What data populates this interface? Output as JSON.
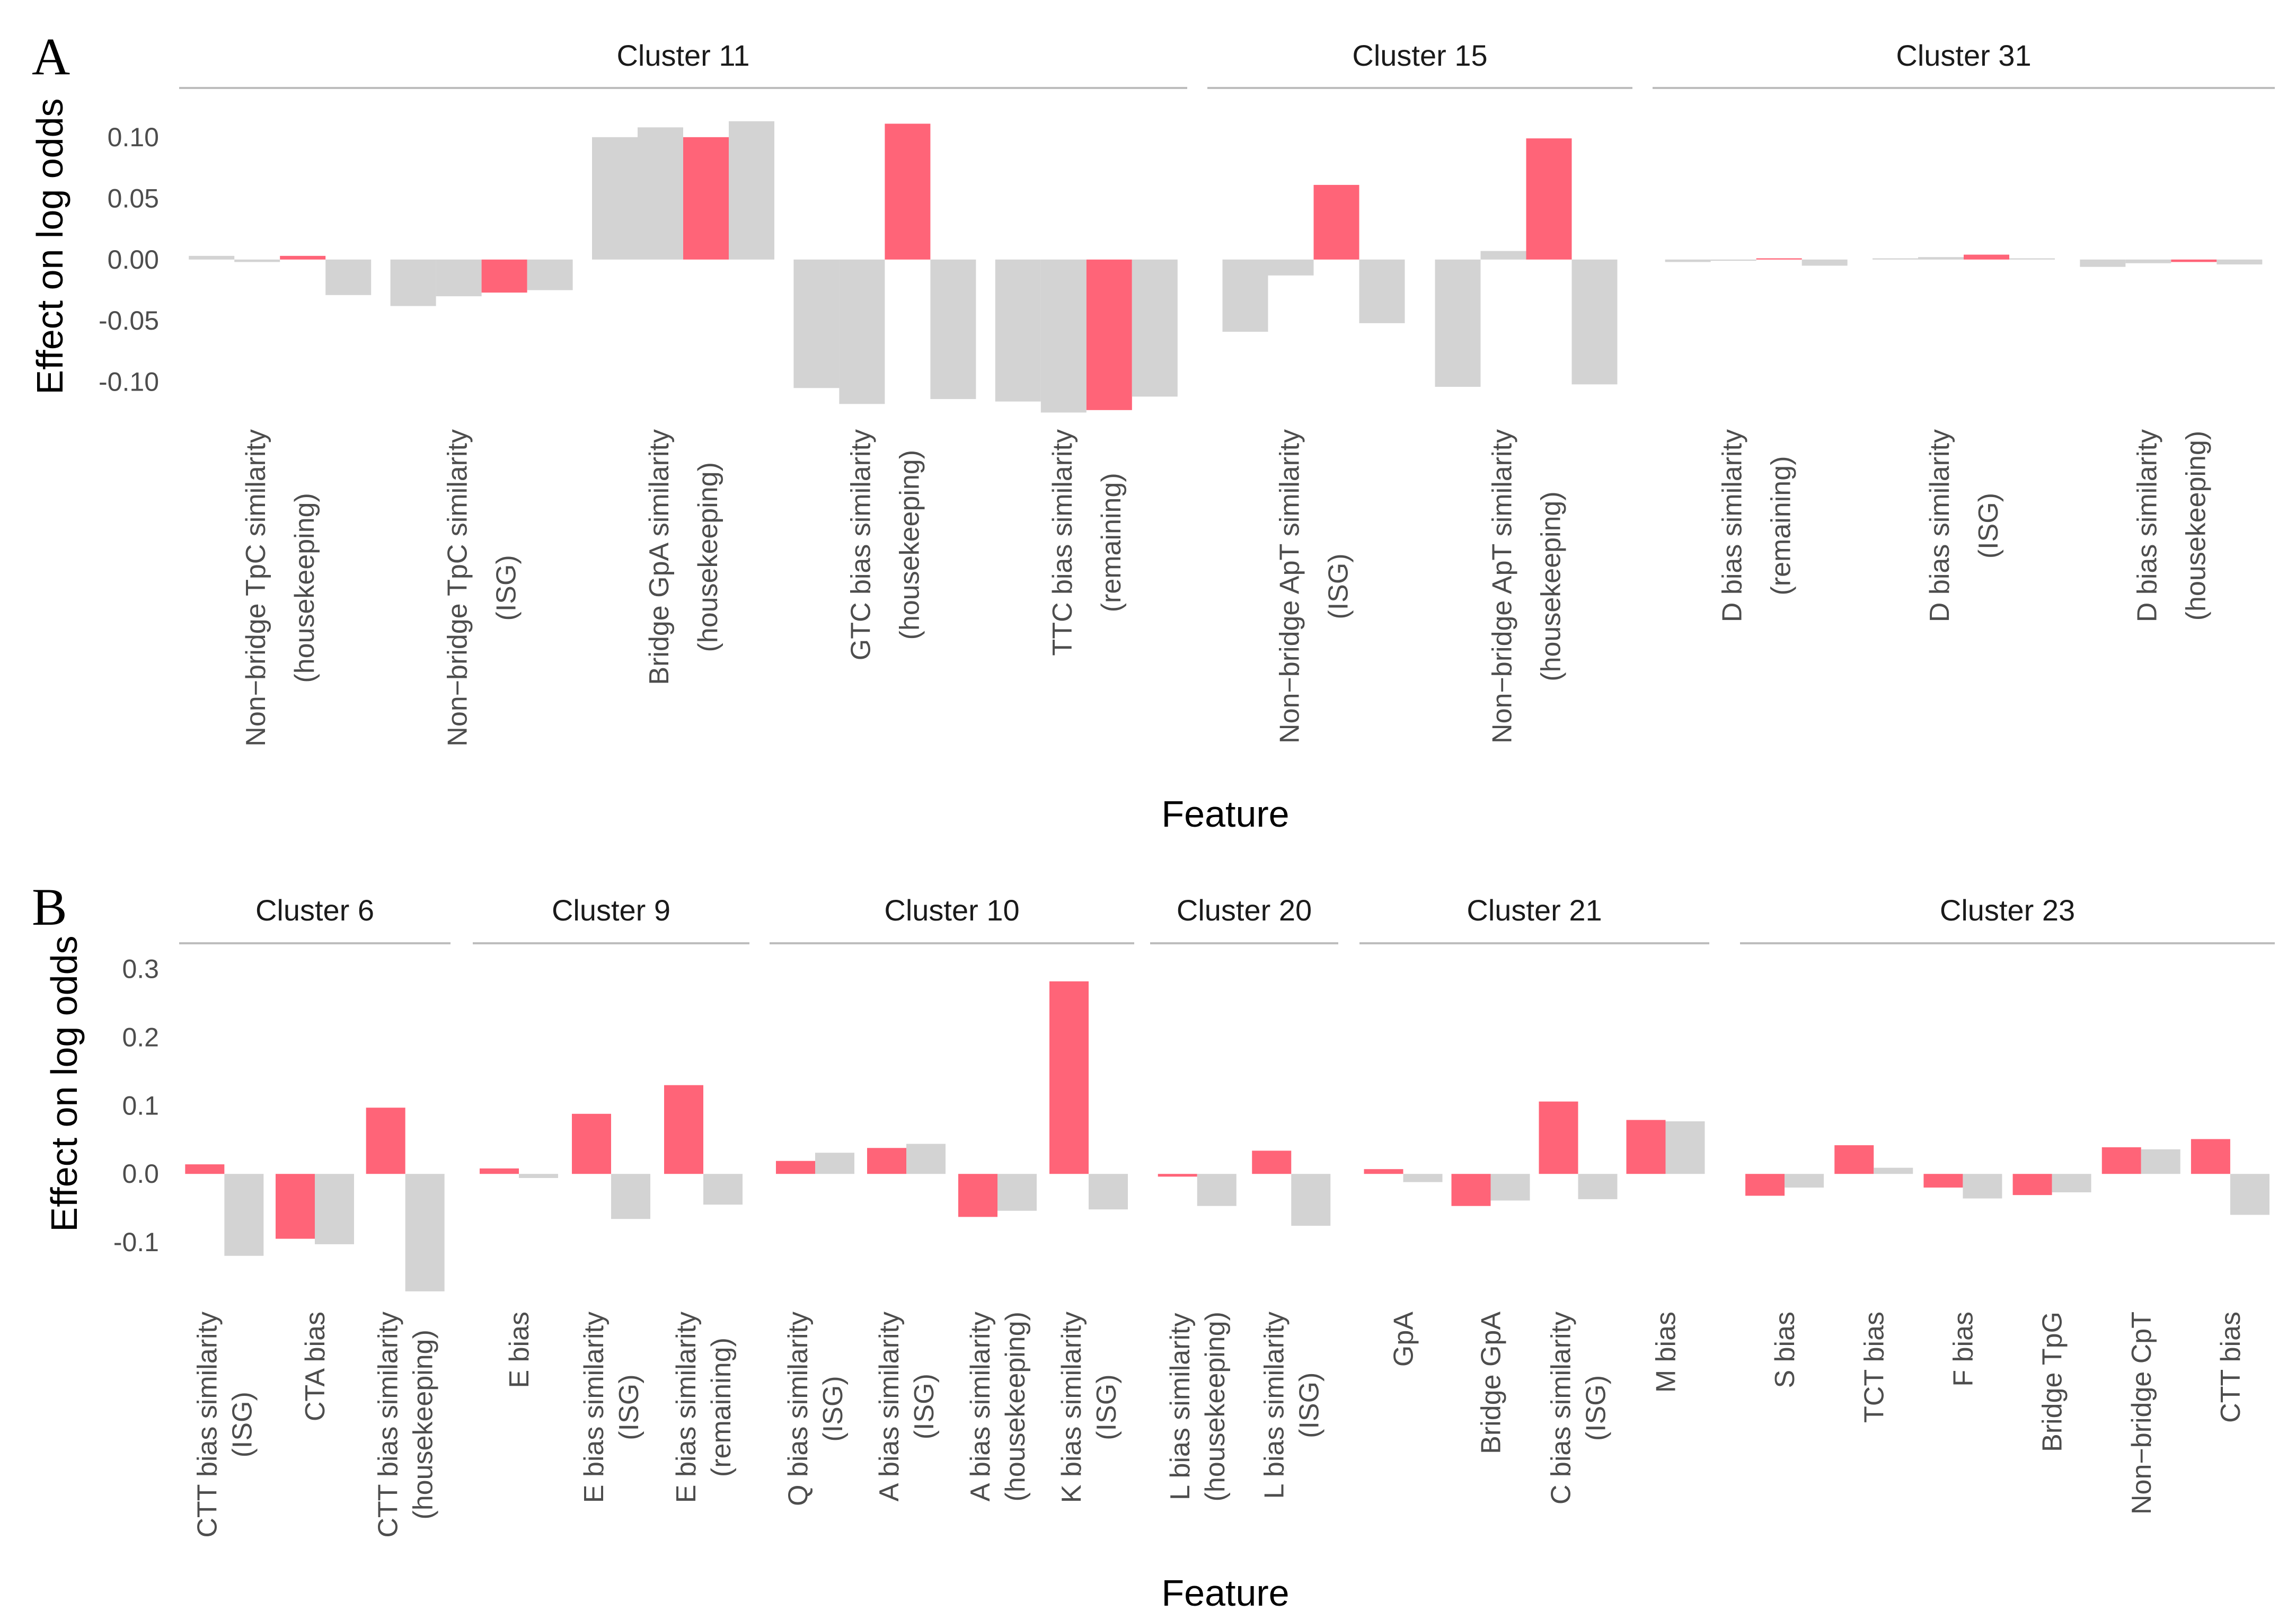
{
  "colors": {
    "highlight": "#ff6478",
    "other": "#d3d3d3"
  },
  "chart_data": [
    {
      "type": "bar",
      "panel": "A",
      "ylabel": "Effect on log odds",
      "xlabel": "Feature",
      "ylim": [
        -0.13,
        0.135
      ],
      "yticks": [
        {
          "value": 0.1,
          "label": "0.10"
        },
        {
          "value": 0.05,
          "label": "0.05"
        },
        {
          "value": 0.0,
          "label": "0.00"
        },
        {
          "value": -0.05,
          "label": "-0.05"
        },
        {
          "value": -0.1,
          "label": "-0.10"
        }
      ],
      "grid": false,
      "facets": [
        {
          "label": "Cluster 11",
          "features": [
            {
              "lines": [
                "Non−bridge TpC similarity",
                "(housekeeping)"
              ],
              "values": [
                0.003,
                -0.002,
                0.003,
                -0.029
              ],
              "highlight": 2
            },
            {
              "lines": [
                "Non−bridge TpC similarity",
                "(ISG)"
              ],
              "values": [
                -0.038,
                -0.03,
                -0.027,
                -0.025
              ],
              "highlight": 2
            },
            {
              "lines": [
                "Bridge GpA similarity",
                "(housekeeping)"
              ],
              "values": [
                0.1,
                0.108,
                0.1,
                0.113
              ],
              "highlight": 2
            },
            {
              "lines": [
                "GTC bias similarity",
                "(housekeeping)"
              ],
              "values": [
                -0.105,
                -0.118,
                0.111,
                -0.114
              ],
              "highlight": 2
            },
            {
              "lines": [
                "TTC bias similarity",
                "(remaining)"
              ],
              "values": [
                -0.116,
                -0.125,
                -0.123,
                -0.112
              ],
              "highlight": 2
            }
          ]
        },
        {
          "label": "Cluster 15",
          "features": [
            {
              "lines": [
                "Non−bridge ApT similarity",
                "(ISG)"
              ],
              "values": [
                -0.059,
                -0.013,
                0.061,
                -0.052
              ],
              "highlight": 2
            },
            {
              "lines": [
                "Non−bridge ApT similarity",
                "(housekeeping)"
              ],
              "values": [
                -0.104,
                0.007,
                0.099,
                -0.102
              ],
              "highlight": 2
            }
          ]
        },
        {
          "label": "Cluster 31",
          "features": [
            {
              "lines": [
                "D bias similarity",
                "(remaining)"
              ],
              "values": [
                -0.002,
                -0.001,
                0.001,
                -0.005
              ],
              "highlight": 2
            },
            {
              "lines": [
                "D bias similarity",
                "(ISG)"
              ],
              "values": [
                0.001,
                0.002,
                0.004,
                0.001
              ],
              "highlight": 2
            },
            {
              "lines": [
                "D bias similarity",
                "(housekeeping)"
              ],
              "values": [
                -0.006,
                -0.003,
                -0.002,
                -0.004
              ],
              "highlight": 2
            }
          ]
        }
      ]
    },
    {
      "type": "bar",
      "panel": "B",
      "ylabel": "Effect on log odds",
      "xlabel": "Feature",
      "ylim": [
        -0.19,
        0.33
      ],
      "yticks": [
        {
          "value": 0.3,
          "label": "0.3"
        },
        {
          "value": 0.2,
          "label": "0.2"
        },
        {
          "value": 0.1,
          "label": "0.1"
        },
        {
          "value": 0.0,
          "label": "0.0"
        },
        {
          "value": -0.1,
          "label": "-0.1"
        }
      ],
      "grid": false,
      "facets": [
        {
          "label": "Cluster 6",
          "features": [
            {
              "lines": [
                "CTT bias similarity",
                "(ISG)"
              ],
              "values": [
                0.014,
                -0.12
              ],
              "highlight": 0
            },
            {
              "lines": [
                "CTA bias"
              ],
              "values": [
                -0.095,
                -0.103
              ],
              "highlight": 0
            },
            {
              "lines": [
                "CTT bias similarity",
                "(housekeeping)"
              ],
              "values": [
                0.097,
                -0.172
              ],
              "highlight": 0
            }
          ]
        },
        {
          "label": "Cluster 9",
          "features": [
            {
              "lines": [
                "E bias"
              ],
              "values": [
                0.008,
                -0.006
              ],
              "highlight": 0
            },
            {
              "lines": [
                "E bias similarity",
                "(ISG)"
              ],
              "values": [
                0.088,
                -0.066
              ],
              "highlight": 0
            },
            {
              "lines": [
                "E bias similarity",
                "(remaining)"
              ],
              "values": [
                0.13,
                -0.045
              ],
              "highlight": 0
            }
          ]
        },
        {
          "label": "Cluster 10",
          "features": [
            {
              "lines": [
                "Q bias similarity",
                "(ISG)"
              ],
              "values": [
                0.019,
                0.031
              ],
              "highlight": 0
            },
            {
              "lines": [
                "A bias similarity",
                "(ISG)"
              ],
              "values": [
                0.038,
                0.044
              ],
              "highlight": 0
            },
            {
              "lines": [
                "A bias similarity",
                "(housekeeping)"
              ],
              "values": [
                -0.063,
                -0.054
              ],
              "highlight": 0
            },
            {
              "lines": [
                "K bias similarity",
                "(ISG)"
              ],
              "values": [
                0.282,
                -0.052
              ],
              "highlight": 0
            }
          ]
        },
        {
          "label": "Cluster 20",
          "features": [
            {
              "lines": [
                "L bias similarity",
                "(housekeeping)"
              ],
              "values": [
                -0.004,
                -0.047
              ],
              "highlight": 0
            },
            {
              "lines": [
                "L bias similarity",
                "(ISG)"
              ],
              "values": [
                0.034,
                -0.076
              ],
              "highlight": 0
            }
          ]
        },
        {
          "label": "Cluster 21",
          "features": [
            {
              "lines": [
                "GpA"
              ],
              "values": [
                0.007,
                -0.012
              ],
              "highlight": 0
            },
            {
              "lines": [
                "Bridge GpA"
              ],
              "values": [
                -0.047,
                -0.039
              ],
              "highlight": 0
            },
            {
              "lines": [
                "C bias similarity",
                "(ISG)"
              ],
              "values": [
                0.106,
                -0.037
              ],
              "highlight": 0
            },
            {
              "lines": [
                "M bias"
              ],
              "values": [
                0.079,
                0.077
              ],
              "highlight": 0
            }
          ]
        },
        {
          "label": "Cluster 23",
          "features": [
            {
              "lines": [
                "S bias"
              ],
              "values": [
                -0.032,
                -0.02
              ],
              "highlight": 0
            },
            {
              "lines": [
                "TCT bias"
              ],
              "values": [
                0.042,
                0.009
              ],
              "highlight": 0
            },
            {
              "lines": [
                "F bias"
              ],
              "values": [
                -0.02,
                -0.036
              ],
              "highlight": 0
            },
            {
              "lines": [
                "Bridge TpG"
              ],
              "values": [
                -0.031,
                -0.027
              ],
              "highlight": 0
            },
            {
              "lines": [
                "Non−bridge CpT"
              ],
              "values": [
                0.039,
                0.036
              ],
              "highlight": 0
            },
            {
              "lines": [
                "CTT bias"
              ],
              "values": [
                0.051,
                -0.06
              ],
              "highlight": 0
            }
          ]
        }
      ]
    }
  ]
}
